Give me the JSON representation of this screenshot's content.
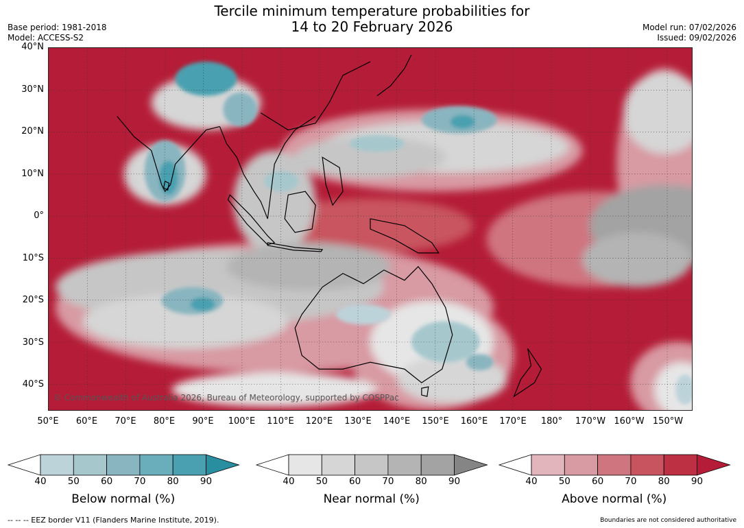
{
  "title_line1": "Tercile minimum temperature probabilities for",
  "title_line2": "14 to 20 February 2026",
  "base_period": "Base period: 1981-2018",
  "model": "Model: ACCESS-S2",
  "model_run": "Model run: 07/02/2026",
  "issued": "Issued: 09/02/2026",
  "map": {
    "lat_labels": [
      "40°N",
      "30°N",
      "20°N",
      "10°N",
      "0°",
      "10°S",
      "20°S",
      "30°S",
      "40°S"
    ],
    "lon_labels": [
      "50°E",
      "60°E",
      "70°E",
      "80°E",
      "90°E",
      "100°E",
      "110°E",
      "120°E",
      "130°E",
      "140°E",
      "150°E",
      "160°E",
      "170°E",
      "180°",
      "170°W",
      "160°W",
      "150°W"
    ],
    "credit": "© Commonwealth of Australia 2026, Bureau of Meteorology, supported by COSPPac"
  },
  "colorbars": [
    {
      "title": "Below normal (%)",
      "ticks": [
        "40",
        "50",
        "60",
        "70",
        "80",
        "90"
      ],
      "colors": [
        "#bdd3da",
        "#a6c8cd",
        "#89b5c0",
        "#6aaebb",
        "#4aa0b0",
        "#2a8ea1"
      ]
    },
    {
      "title": "Near normal (%)",
      "ticks": [
        "40",
        "50",
        "60",
        "70",
        "80",
        "90"
      ],
      "colors": [
        "#e6e6e6",
        "#d6d6d6",
        "#c6c6c6",
        "#b4b4b4",
        "#a3a3a3",
        "#858585"
      ]
    },
    {
      "title": "Above normal (%)",
      "ticks": [
        "40",
        "50",
        "60",
        "70",
        "80",
        "90"
      ],
      "colors": [
        "#e2b5bd",
        "#d89aa3",
        "#cf7580",
        "#c8545f",
        "#bd2f42",
        "#b51c37"
      ]
    }
  ],
  "eez_note": "--  --  -- EEZ border V11 (Flanders Marine Institute, 2019).",
  "disclaimer": "Boundaries are not considered authoritative"
}
